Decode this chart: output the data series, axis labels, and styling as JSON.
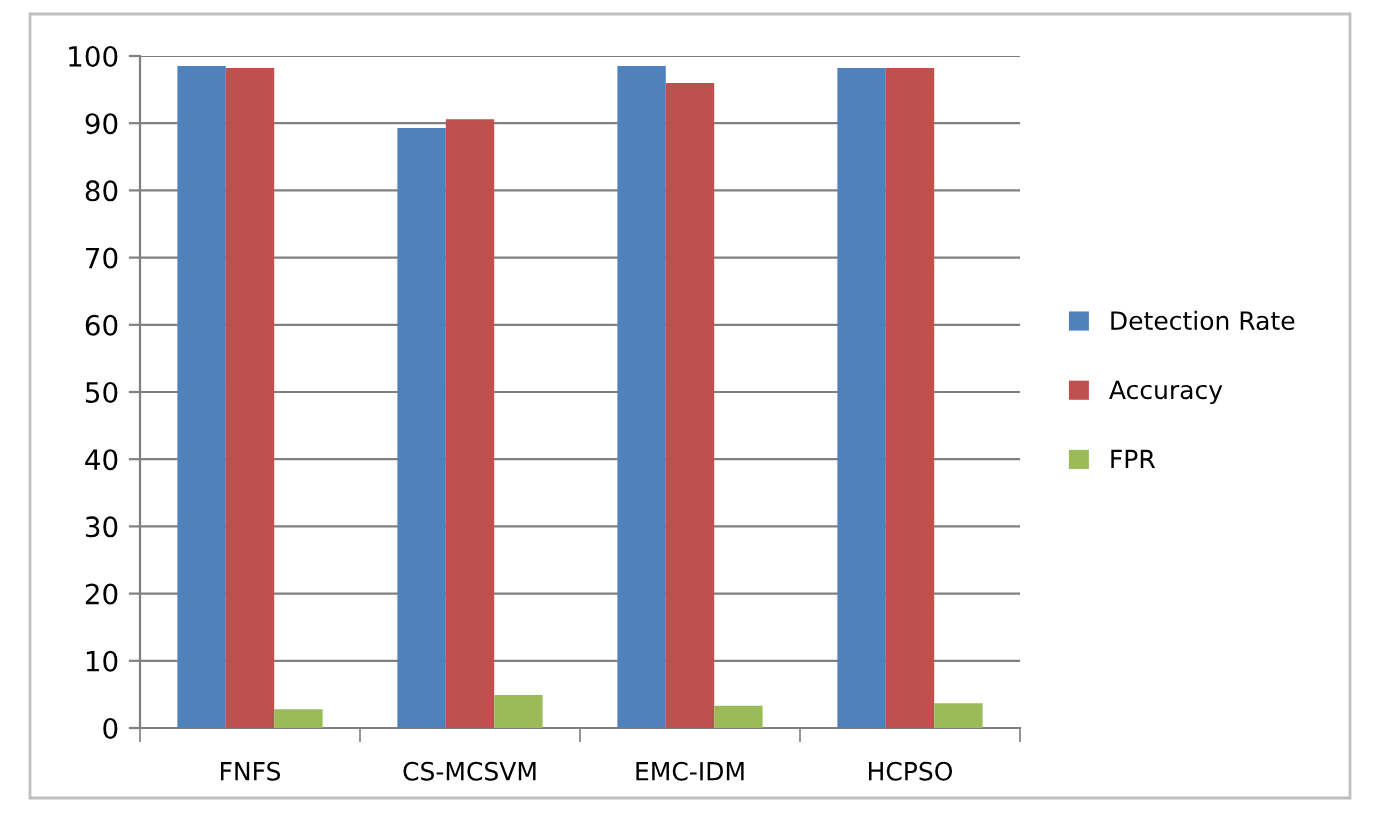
{
  "chart_data": {
    "type": "bar",
    "categories": [
      "FNFS",
      "CS-MCSVM",
      "EMC-IDM",
      "HCPSO"
    ],
    "series": [
      {
        "name": "Detection Rate",
        "color": "#4f81bd",
        "values": [
          98.5,
          89.3,
          98.5,
          98.2
        ]
      },
      {
        "name": "Accuracy",
        "color": "#c0504d",
        "values": [
          98.2,
          90.6,
          96.0,
          98.2
        ]
      },
      {
        "name": "FPR",
        "color": "#9bbb59",
        "values": [
          2.8,
          4.9,
          3.3,
          3.7
        ]
      }
    ],
    "ylim": [
      0,
      100
    ],
    "yticks": [
      0,
      10,
      20,
      30,
      40,
      50,
      60,
      70,
      80,
      90,
      100
    ],
    "grid": "y",
    "legend": "right"
  }
}
